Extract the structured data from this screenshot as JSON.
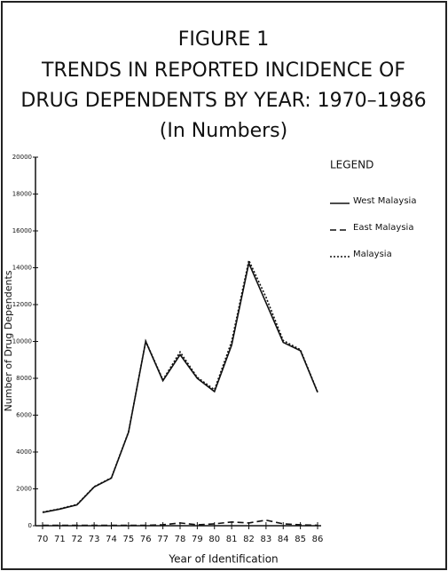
{
  "chart_data": {
    "type": "line",
    "title": [
      "FIGURE 1",
      "TRENDS IN REPORTED INCIDENCE OF",
      "DRUG DEPENDENTS BY YEAR: 1970–1986",
      "(In Numbers)"
    ],
    "x_label": "Year of Identification",
    "y_label": "Number of Drug Dependents",
    "legend_title": "LEGEND",
    "categories": [
      "70",
      "71",
      "72",
      "73",
      "74",
      "75",
      "76",
      "77",
      "78",
      "79",
      "80",
      "81",
      "82",
      "83",
      "84",
      "85",
      "86"
    ],
    "series": [
      {
        "name": "West Malaysia",
        "color": "#111111",
        "style": "solid",
        "values": [
          720,
          900,
          1130,
          2100,
          2580,
          5070,
          10000,
          7870,
          9280,
          8000,
          7280,
          9800,
          14250,
          12100,
          9950,
          9500,
          7240
        ]
      },
      {
        "name": "East Malaysia",
        "color": "#111111",
        "style": "dashed",
        "values": [
          20,
          20,
          20,
          20,
          20,
          20,
          20,
          50,
          150,
          50,
          100,
          200,
          150,
          300,
          100,
          50,
          20
        ]
      },
      {
        "name": "Malaysia",
        "color": "#111111",
        "style": "dotted",
        "values": [
          740,
          920,
          1150,
          2120,
          2600,
          5090,
          10020,
          7920,
          9430,
          8050,
          7380,
          10000,
          14400,
          12400,
          10050,
          9550,
          7260
        ]
      }
    ],
    "ylim": [
      0,
      20000
    ],
    "yticks": [
      0,
      2000,
      4000,
      6000,
      8000,
      10000,
      12000,
      14000,
      16000,
      18000,
      20000
    ],
    "legend": "right"
  }
}
